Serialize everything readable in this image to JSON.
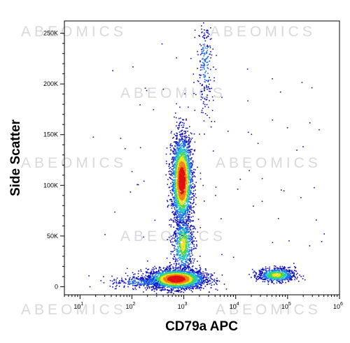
{
  "chart_data": {
    "type": "scatter",
    "subtype": "flow-cytometry density dot plot",
    "xlabel": "CD79a APC",
    "ylabel": "Side Scatter",
    "xscale": "log",
    "xlim": [
      5,
      1000000
    ],
    "ylim": [
      -8000,
      262144
    ],
    "x_ticks": [
      {
        "value": 10,
        "base": "10",
        "exp": "1"
      },
      {
        "value": 100,
        "base": "10",
        "exp": "2"
      },
      {
        "value": 1000,
        "base": "10",
        "exp": "3"
      },
      {
        "value": 10000,
        "base": "10",
        "exp": "4"
      },
      {
        "value": 100000,
        "base": "10",
        "exp": "5"
      },
      {
        "value": 1000000,
        "base": "10",
        "exp": "6"
      }
    ],
    "y_ticks": [
      {
        "value": 0,
        "label": "0"
      },
      {
        "value": 50000,
        "label": "50K"
      },
      {
        "value": 100000,
        "label": "100K"
      },
      {
        "value": 150000,
        "label": "150K"
      },
      {
        "value": 200000,
        "label": "200K"
      },
      {
        "value": 250000,
        "label": "250K"
      }
    ],
    "grid": false,
    "legend": "none",
    "color_scale": [
      "#1010c0",
      "#1a6cf0",
      "#22c8c8",
      "#48d848",
      "#f0e020",
      "#f08010",
      "#e01010"
    ],
    "populations": [
      {
        "center_x": 700,
        "center_y": 8000,
        "spread_log10_x": 0.28,
        "spread_y": 5000,
        "density": "high"
      },
      {
        "center_x": 900,
        "center_y": 105000,
        "spread_log10_x": 0.1,
        "spread_y": 22000,
        "density": "high"
      },
      {
        "center_x": 950,
        "center_y": 42000,
        "spread_log10_x": 0.1,
        "spread_y": 14000,
        "density": "medium"
      },
      {
        "center_x": 2500,
        "center_y": 220000,
        "spread_log10_x": 0.08,
        "spread_y": 25000,
        "density": "low"
      },
      {
        "center_x": 60000,
        "center_y": 12000,
        "spread_log10_x": 0.18,
        "spread_y": 3500,
        "density": "medium"
      },
      {
        "center_x": 150,
        "center_y": 5000,
        "spread_log10_x": 0.3,
        "spread_y": 3000,
        "density": "low"
      }
    ]
  },
  "watermark_text": "ABEOMICS"
}
